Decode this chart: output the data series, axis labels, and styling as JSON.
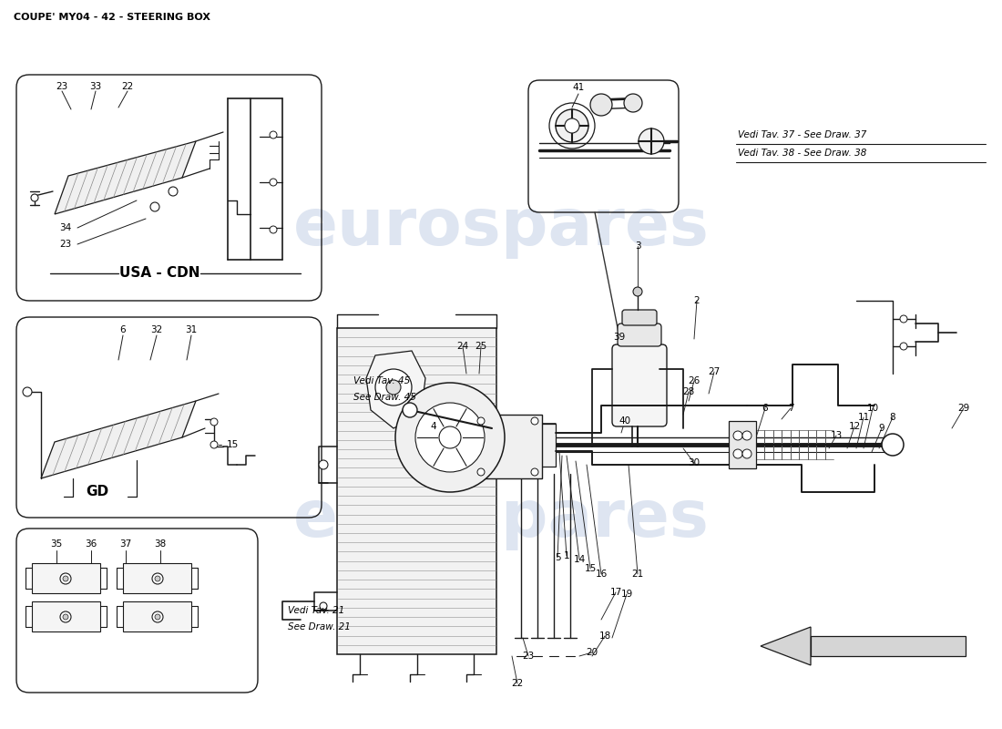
{
  "title": "COUPE' MY04 - 42 - STEERING BOX",
  "bg_color": "#ffffff",
  "watermark_text": "eurospares",
  "watermark_color": "#c8d4e8",
  "title_fontsize": 8,
  "title_color": "#000000",
  "line_color": "#1a1a1a",
  "box_usa_cdn_label": "USA - CDN",
  "box_gd_label": "GD",
  "note_vedi37": "Vedi Tav. 37 - See Draw. 37",
  "note_vedi38": "Vedi Tav. 38 - See Draw. 38",
  "note_vedi45_line1": "Vedi Tav. 45",
  "note_vedi45_line2": "See Draw. 45",
  "note_vedi21_line1": "Vedi Tav. 21",
  "note_vedi21_line2": "See Draw. 21"
}
